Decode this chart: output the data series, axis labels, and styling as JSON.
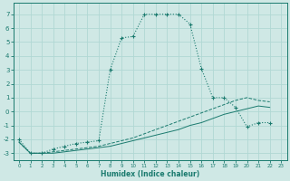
{
  "xlabel": "Humidex (Indice chaleur)",
  "bg_color": "#cfe8e5",
  "grid_color": "#b0d8d4",
  "line_color": "#1a7a6e",
  "xlim": [
    -0.5,
    23.5
  ],
  "ylim": [
    -3.5,
    7.8
  ],
  "xticks": [
    0,
    1,
    2,
    3,
    4,
    5,
    6,
    7,
    8,
    9,
    10,
    11,
    12,
    13,
    14,
    15,
    16,
    17,
    18,
    19,
    20,
    21,
    22,
    23
  ],
  "yticks": [
    -3,
    -2,
    -1,
    0,
    1,
    2,
    3,
    4,
    5,
    6,
    7
  ],
  "curve1_x": [
    0,
    1,
    2,
    3,
    4,
    5,
    6,
    7,
    8,
    9,
    10,
    11,
    12,
    13,
    14,
    15,
    16,
    17,
    18,
    19,
    20,
    21,
    22
  ],
  "curve1_y": [
    -2,
    -3,
    -3,
    -2.7,
    -2.5,
    -2.3,
    -2.2,
    -2.1,
    3.0,
    5.3,
    5.4,
    7.0,
    7.0,
    7.0,
    7.0,
    6.3,
    3.1,
    1.0,
    1.0,
    0.3,
    -1.1,
    -0.8,
    -0.8
  ],
  "curve2_x": [
    0,
    1,
    2,
    3,
    4,
    5,
    6,
    7,
    8,
    9,
    10,
    11,
    12,
    13,
    14,
    15,
    16,
    17,
    18,
    19,
    20,
    21,
    22
  ],
  "curve2_y": [
    -2.2,
    -3.0,
    -3.0,
    -2.9,
    -2.8,
    -2.7,
    -2.6,
    -2.5,
    -2.3,
    -2.1,
    -1.9,
    -1.6,
    -1.3,
    -1.0,
    -0.7,
    -0.4,
    -0.1,
    0.2,
    0.5,
    0.8,
    1.0,
    0.8,
    0.7
  ],
  "curve3_x": [
    0,
    1,
    2,
    3,
    4,
    5,
    6,
    7,
    8,
    9,
    10,
    11,
    12,
    13,
    14,
    15,
    16,
    17,
    18,
    19,
    20,
    21,
    22
  ],
  "curve3_y": [
    -2.2,
    -3.0,
    -3.0,
    -3.0,
    -2.9,
    -2.8,
    -2.7,
    -2.6,
    -2.5,
    -2.3,
    -2.1,
    -1.9,
    -1.7,
    -1.5,
    -1.3,
    -1.0,
    -0.8,
    -0.5,
    -0.2,
    0.0,
    0.2,
    0.4,
    0.3
  ]
}
